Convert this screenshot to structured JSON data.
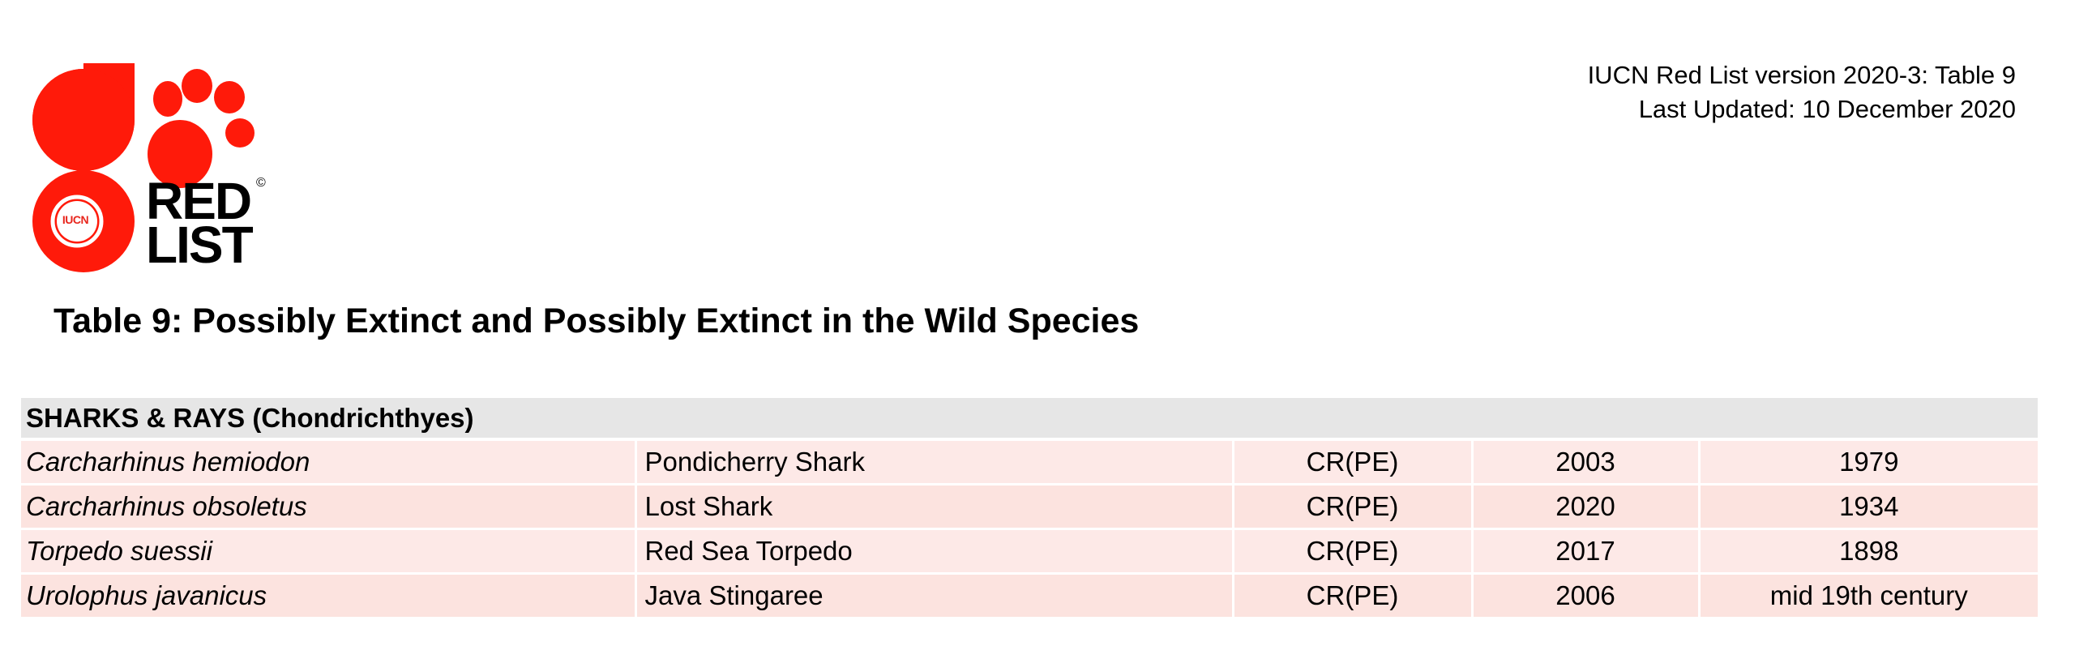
{
  "logo": {
    "word_red": "RED",
    "word_list": "LIST",
    "copyright": "©",
    "badge": "IUCN",
    "colors": {
      "red": "#ff1a0a",
      "dark": "#000000"
    }
  },
  "header": {
    "version_line": "IUCN Red List version 2020-3: Table 9",
    "updated_line": "Last Updated: 10 December 2020"
  },
  "title": "Table 9: Possibly Extinct and Possibly Extinct in the Wild Species",
  "table": {
    "group_header": "SHARKS & RAYS (Chondrichthyes)",
    "rows": [
      {
        "scientific_name": "Carcharhinus hemiodon",
        "common_name": "Pondicherry Shark",
        "category": "CR(PE)",
        "assessment_year": "2003",
        "last_record": "1979"
      },
      {
        "scientific_name": "Carcharhinus obsoletus",
        "common_name": "Lost Shark",
        "category": "CR(PE)",
        "assessment_year": "2020",
        "last_record": "1934"
      },
      {
        "scientific_name": "Torpedo suessii",
        "common_name": "Red Sea Torpedo",
        "category": "CR(PE)",
        "assessment_year": "2017",
        "last_record": "1898"
      },
      {
        "scientific_name": "Urolophus javanicus",
        "common_name": "Java Stingaree",
        "category": "CR(PE)",
        "assessment_year": "2006",
        "last_record": "mid 19th century"
      }
    ],
    "colors": {
      "group_bg": "#e6e6e6",
      "row_bg": "#fde9e7"
    }
  }
}
